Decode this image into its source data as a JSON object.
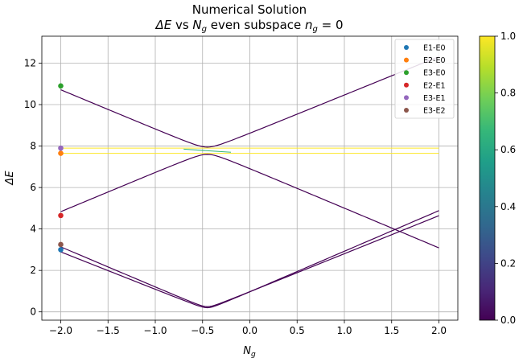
{
  "chart_data": {
    "type": "line",
    "title": "Numerical Solution",
    "subtitle_parts": {
      "var": "ΔE",
      "vs": " vs ",
      "base": "N",
      "sub": "g",
      "rest": " even subspace ",
      "base2": "n",
      "sub2": "g",
      "eq": " = 0"
    },
    "xlabel": {
      "base": "N",
      "sub": "g"
    },
    "ylabel": "ΔE",
    "xlim": [
      -2.2,
      2.2
    ],
    "ylim": [
      -0.4,
      13.3
    ],
    "xticks": [
      -2.0,
      -1.5,
      -1.0,
      -0.5,
      0.0,
      0.5,
      1.0,
      1.5,
      2.0
    ],
    "xtick_labels": [
      "−2.0",
      "−1.5",
      "−1.0",
      "−0.5",
      "0.0",
      "0.5",
      "1.0",
      "1.5",
      "2.0"
    ],
    "yticks": [
      0,
      2,
      4,
      6,
      8,
      10,
      12
    ],
    "ytick_labels": [
      "0",
      "2",
      "4",
      "6",
      "8",
      "10",
      "12"
    ],
    "grid": true,
    "legend_position": "top-right",
    "line_color": "#440154",
    "series": [
      {
        "name": "E1-E0",
        "color": "#1f77b4",
        "start_value": 3.0
      },
      {
        "name": "E2-E0",
        "color": "#ff7f0e",
        "start_value": 7.65
      },
      {
        "name": "E3-E0",
        "color": "#2ca02c",
        "start_value": 10.9
      },
      {
        "name": "E2-E1",
        "color": "#d62728",
        "start_value": 4.65
      },
      {
        "name": "E3-E1",
        "color": "#9467bd",
        "start_value": 7.9
      },
      {
        "name": "E3-E2",
        "color": "#8c564b",
        "start_value": 3.25
      }
    ],
    "curves": {
      "low_pair": [
        {
          "x": [
            -2.0,
            -0.45,
            2.0
          ],
          "y": [
            3.0,
            0.2,
            5.0
          ]
        },
        {
          "x": [
            -2.0,
            -0.45,
            2.0
          ],
          "y": [
            3.25,
            0.25,
            4.75
          ]
        }
      ],
      "crossing": [
        {
          "x": [
            -2.0,
            -0.45,
            2.0
          ],
          "y": [
            10.9,
            7.95,
            12.5
          ]
        },
        {
          "x": [
            -2.0,
            -0.45,
            2.0
          ],
          "y": [
            4.65,
            7.6,
            2.9
          ]
        }
      ],
      "flat_bands": [
        {
          "x": [
            -2.0,
            2.0
          ],
          "y": [
            7.9,
            7.9
          ],
          "color": "#fde725"
        },
        {
          "x": [
            -2.0,
            2.0
          ],
          "y": [
            7.65,
            7.65
          ],
          "color": "#fde725"
        },
        {
          "x": [
            -0.7,
            -0.2
          ],
          "y": [
            7.85,
            7.7
          ],
          "color": "#35b779"
        }
      ]
    },
    "colorbar": {
      "min": 0.0,
      "max": 1.0,
      "ticks": [
        "0.0",
        "0.2",
        "0.4",
        "0.6",
        "0.8",
        "1.0"
      ],
      "colormap": "viridis",
      "stops": [
        "#440154",
        "#482878",
        "#3e4989",
        "#31688e",
        "#26828e",
        "#1f9e89",
        "#35b779",
        "#6ece58",
        "#b5de2b",
        "#fde725"
      ]
    }
  }
}
